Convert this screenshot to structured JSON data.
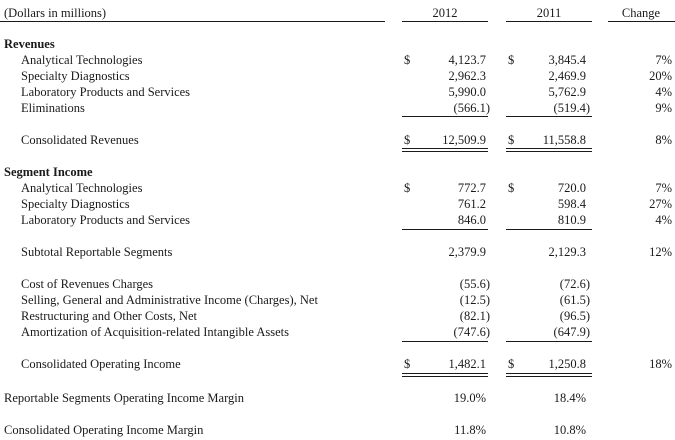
{
  "header": {
    "units_label": "(Dollars in millions)",
    "col_2012": "2012",
    "col_2011": "2011",
    "col_change": "Change"
  },
  "currency_symbol": "$",
  "revenues": {
    "heading": "Revenues",
    "rows": [
      {
        "label": "Analytical Technologies",
        "v2012": "4,123.7",
        "v2011": "3,845.4",
        "change": "7%"
      },
      {
        "label": "Specialty Diagnostics",
        "v2012": "2,962.3",
        "v2011": "2,469.9",
        "change": "20%"
      },
      {
        "label": "Laboratory Products and Services",
        "v2012": "5,990.0",
        "v2011": "5,762.9",
        "change": "4%"
      },
      {
        "label": "Eliminations",
        "v2012": "(566.1)",
        "v2011": "(519.4)",
        "change": "9%"
      }
    ],
    "total": {
      "label": "Consolidated Revenues",
      "v2012": "12,509.9",
      "v2011": "11,558.8",
      "change": "8%"
    }
  },
  "segment_income": {
    "heading": "Segment Income",
    "rows": [
      {
        "label": "Analytical Technologies",
        "v2012": "772.7",
        "v2011": "720.0",
        "change": "7%"
      },
      {
        "label": "Specialty Diagnostics",
        "v2012": "761.2",
        "v2011": "598.4",
        "change": "27%"
      },
      {
        "label": "Laboratory Products and Services",
        "v2012": "846.0",
        "v2011": "810.9",
        "change": "4%"
      }
    ],
    "subtotal": {
      "label": "Subtotal Reportable Segments",
      "v2012": "2,379.9",
      "v2011": "2,129.3",
      "change": "12%"
    }
  },
  "adjustments": [
    {
      "label": "Cost of Revenues Charges",
      "v2012": "(55.6)",
      "v2011": "(72.6)"
    },
    {
      "label": "Selling, General and Administrative Income (Charges), Net",
      "v2012": "(12.5)",
      "v2011": "(61.5)"
    },
    {
      "label": "Restructuring and Other Costs, Net",
      "v2012": "(82.1)",
      "v2011": "(96.5)"
    },
    {
      "label": "Amortization of Acquisition-related Intangible Assets",
      "v2012": "(747.6)",
      "v2011": "(647.9)"
    }
  ],
  "operating_income": {
    "label": "Consolidated Operating Income",
    "v2012": "1,482.1",
    "v2011": "1,250.8",
    "change": "18%"
  },
  "margins": [
    {
      "label": "Reportable Segments Operating Income Margin",
      "v2012": "19.0%",
      "v2011": "18.4%"
    },
    {
      "label": "Consolidated Operating Income Margin",
      "v2012": "11.8%",
      "v2011": "10.8%"
    }
  ]
}
